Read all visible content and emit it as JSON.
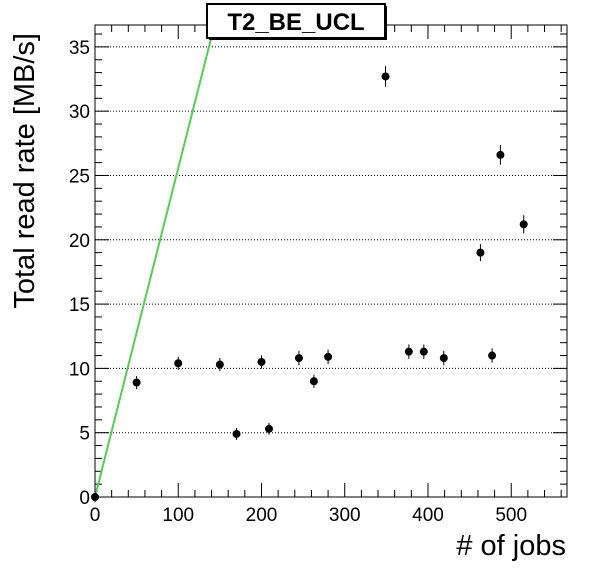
{
  "chart_data": {
    "type": "scatter",
    "title": "T2_BE_UCL",
    "xlabel": "# of jobs",
    "ylabel": "Total read rate [MB/s]",
    "xlim": [
      0,
      567
    ],
    "ylim": [
      0,
      36.7
    ],
    "x_ticks": [
      0,
      100,
      200,
      300,
      400,
      500
    ],
    "y_ticks": [
      0,
      5,
      10,
      15,
      20,
      25,
      30,
      35
    ],
    "grid": "horizontal dotted",
    "colors": {
      "points": "#000000",
      "fit_line": "#55cc55"
    },
    "points": [
      {
        "x": 0,
        "y": 0,
        "yerr": 0.1
      },
      {
        "x": 50,
        "y": 8.9,
        "yerr": 0.2
      },
      {
        "x": 100,
        "y": 10.4,
        "yerr": 0.2
      },
      {
        "x": 150,
        "y": 10.3,
        "yerr": 0.2
      },
      {
        "x": 170,
        "y": 4.9,
        "yerr": 0.15
      },
      {
        "x": 200,
        "y": 10.5,
        "yerr": 0.2
      },
      {
        "x": 209,
        "y": 5.3,
        "yerr": 0.15
      },
      {
        "x": 245,
        "y": 10.8,
        "yerr": 0.25
      },
      {
        "x": 263,
        "y": 9.0,
        "yerr": 0.2
      },
      {
        "x": 280,
        "y": 10.9,
        "yerr": 0.25
      },
      {
        "x": 349,
        "y": 32.7,
        "yerr": 0.5
      },
      {
        "x": 377,
        "y": 11.3,
        "yerr": 0.25
      },
      {
        "x": 395,
        "y": 11.3,
        "yerr": 0.25
      },
      {
        "x": 419,
        "y": 10.8,
        "yerr": 0.25
      },
      {
        "x": 463,
        "y": 19.0,
        "yerr": 0.35
      },
      {
        "x": 477,
        "y": 11.0,
        "yerr": 0.25
      },
      {
        "x": 487,
        "y": 26.6,
        "yerr": 0.45
      },
      {
        "x": 515,
        "y": 21.2,
        "yerr": 0.4
      }
    ],
    "fit_line": {
      "x": [
        0,
        143.5
      ],
      "y": [
        0,
        36.7
      ]
    }
  }
}
